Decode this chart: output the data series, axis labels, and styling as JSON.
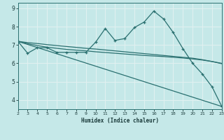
{
  "xlabel": "Humidex (Indice chaleur)",
  "xlim": [
    2,
    23
  ],
  "ylim": [
    3.5,
    9.3
  ],
  "yticks": [
    4,
    5,
    6,
    7,
    8,
    9
  ],
  "xticks": [
    2,
    3,
    4,
    5,
    6,
    7,
    8,
    9,
    10,
    11,
    12,
    13,
    14,
    15,
    16,
    17,
    18,
    19,
    20,
    21,
    22,
    23
  ],
  "bg_color": "#c5e8e8",
  "grid_color": "#e0f0f0",
  "line_color": "#2a7070",
  "line1_x": [
    2,
    3,
    4,
    5,
    6,
    7,
    8,
    9,
    10,
    11,
    12,
    13,
    14,
    15,
    16,
    17,
    18,
    19,
    20,
    21,
    22,
    23
  ],
  "line1_y": [
    7.2,
    7.13,
    7.08,
    7.02,
    6.97,
    6.92,
    6.87,
    6.82,
    6.78,
    6.73,
    6.68,
    6.63,
    6.58,
    6.53,
    6.48,
    6.43,
    6.38,
    6.33,
    6.28,
    6.2,
    6.1,
    6.0
  ],
  "line2_x": [
    2,
    3,
    4,
    5,
    6,
    7,
    8,
    9,
    10,
    11,
    12,
    13,
    14,
    15,
    16,
    17,
    18,
    19,
    20,
    21,
    22,
    23
  ],
  "line2_y": [
    7.2,
    7.07,
    6.97,
    6.88,
    6.82,
    6.76,
    6.72,
    6.68,
    6.63,
    6.59,
    6.55,
    6.51,
    6.47,
    6.43,
    6.4,
    6.37,
    6.33,
    6.29,
    6.24,
    6.18,
    6.1,
    5.98
  ],
  "line3_x": [
    2,
    3,
    4,
    5,
    6,
    7,
    8,
    9,
    10,
    11,
    12,
    13,
    14,
    15,
    16,
    17,
    18,
    19,
    20,
    21,
    22,
    23
  ],
  "line3_y": [
    7.2,
    6.55,
    6.85,
    6.85,
    6.6,
    6.6,
    6.6,
    6.6,
    7.15,
    7.9,
    7.25,
    7.35,
    7.95,
    8.25,
    8.85,
    8.42,
    7.68,
    6.8,
    6.0,
    5.42,
    4.72,
    3.65
  ],
  "line4_x": [
    2,
    23
  ],
  "line4_y": [
    7.2,
    3.65
  ]
}
